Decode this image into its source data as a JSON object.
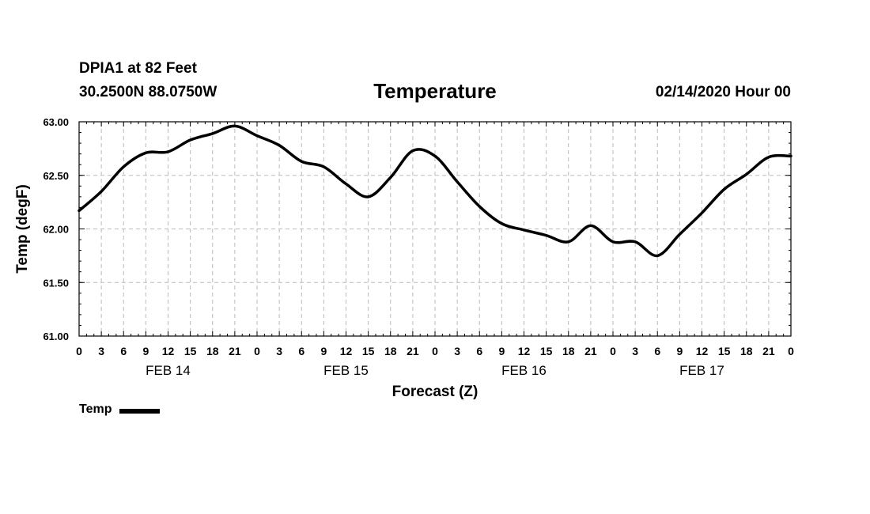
{
  "header": {
    "station": "DPIA1 at 82 Feet",
    "coords": "30.2500N 88.0750W",
    "title": "Temperature",
    "datetime": "02/14/2020 Hour 00"
  },
  "legend": {
    "label": "Temp"
  },
  "colors": {
    "line": "#000000",
    "grid": "#bbbbbb",
    "frame": "#000000"
  },
  "chart_data": {
    "type": "line",
    "title": "Temperature",
    "xlabel": "Forecast (Z)",
    "ylabel": "Temp (degF)",
    "ylim": [
      61.0,
      63.0
    ],
    "xlim": [
      0,
      96
    ],
    "yticks": [
      "61.00",
      "61.50",
      "62.00",
      "62.50",
      "63.00"
    ],
    "xticks": [
      "0",
      "3",
      "6",
      "9",
      "12",
      "15",
      "18",
      "21",
      "0",
      "3",
      "6",
      "9",
      "12",
      "15",
      "18",
      "21",
      "0",
      "3",
      "6",
      "9",
      "12",
      "15",
      "18",
      "21",
      "0",
      "3",
      "6",
      "9",
      "12",
      "15",
      "18",
      "21",
      "0"
    ],
    "day_labels": [
      {
        "label": "FEB 14",
        "hour": 12
      },
      {
        "label": "FEB 15",
        "hour": 36
      },
      {
        "label": "FEB 16",
        "hour": 60
      },
      {
        "label": "FEB 17",
        "hour": 84
      }
    ],
    "grid": true,
    "legend_position": "bottom-left",
    "series": [
      {
        "name": "Temp",
        "x": [
          0,
          3,
          6,
          9,
          12,
          15,
          18,
          21,
          24,
          27,
          30,
          33,
          36,
          39,
          42,
          45,
          48,
          51,
          54,
          57,
          60,
          63,
          66,
          69,
          72,
          75,
          78,
          81,
          84,
          87,
          90,
          93,
          96
        ],
        "values": [
          62.17,
          62.35,
          62.58,
          62.71,
          62.72,
          62.83,
          62.89,
          62.96,
          62.87,
          62.78,
          62.63,
          62.58,
          62.42,
          62.3,
          62.48,
          62.73,
          62.68,
          62.44,
          62.21,
          62.05,
          61.99,
          61.94,
          61.88,
          62.03,
          61.88,
          61.88,
          61.75,
          61.95,
          62.15,
          62.37,
          62.51,
          62.67,
          62.68
        ]
      }
    ]
  }
}
